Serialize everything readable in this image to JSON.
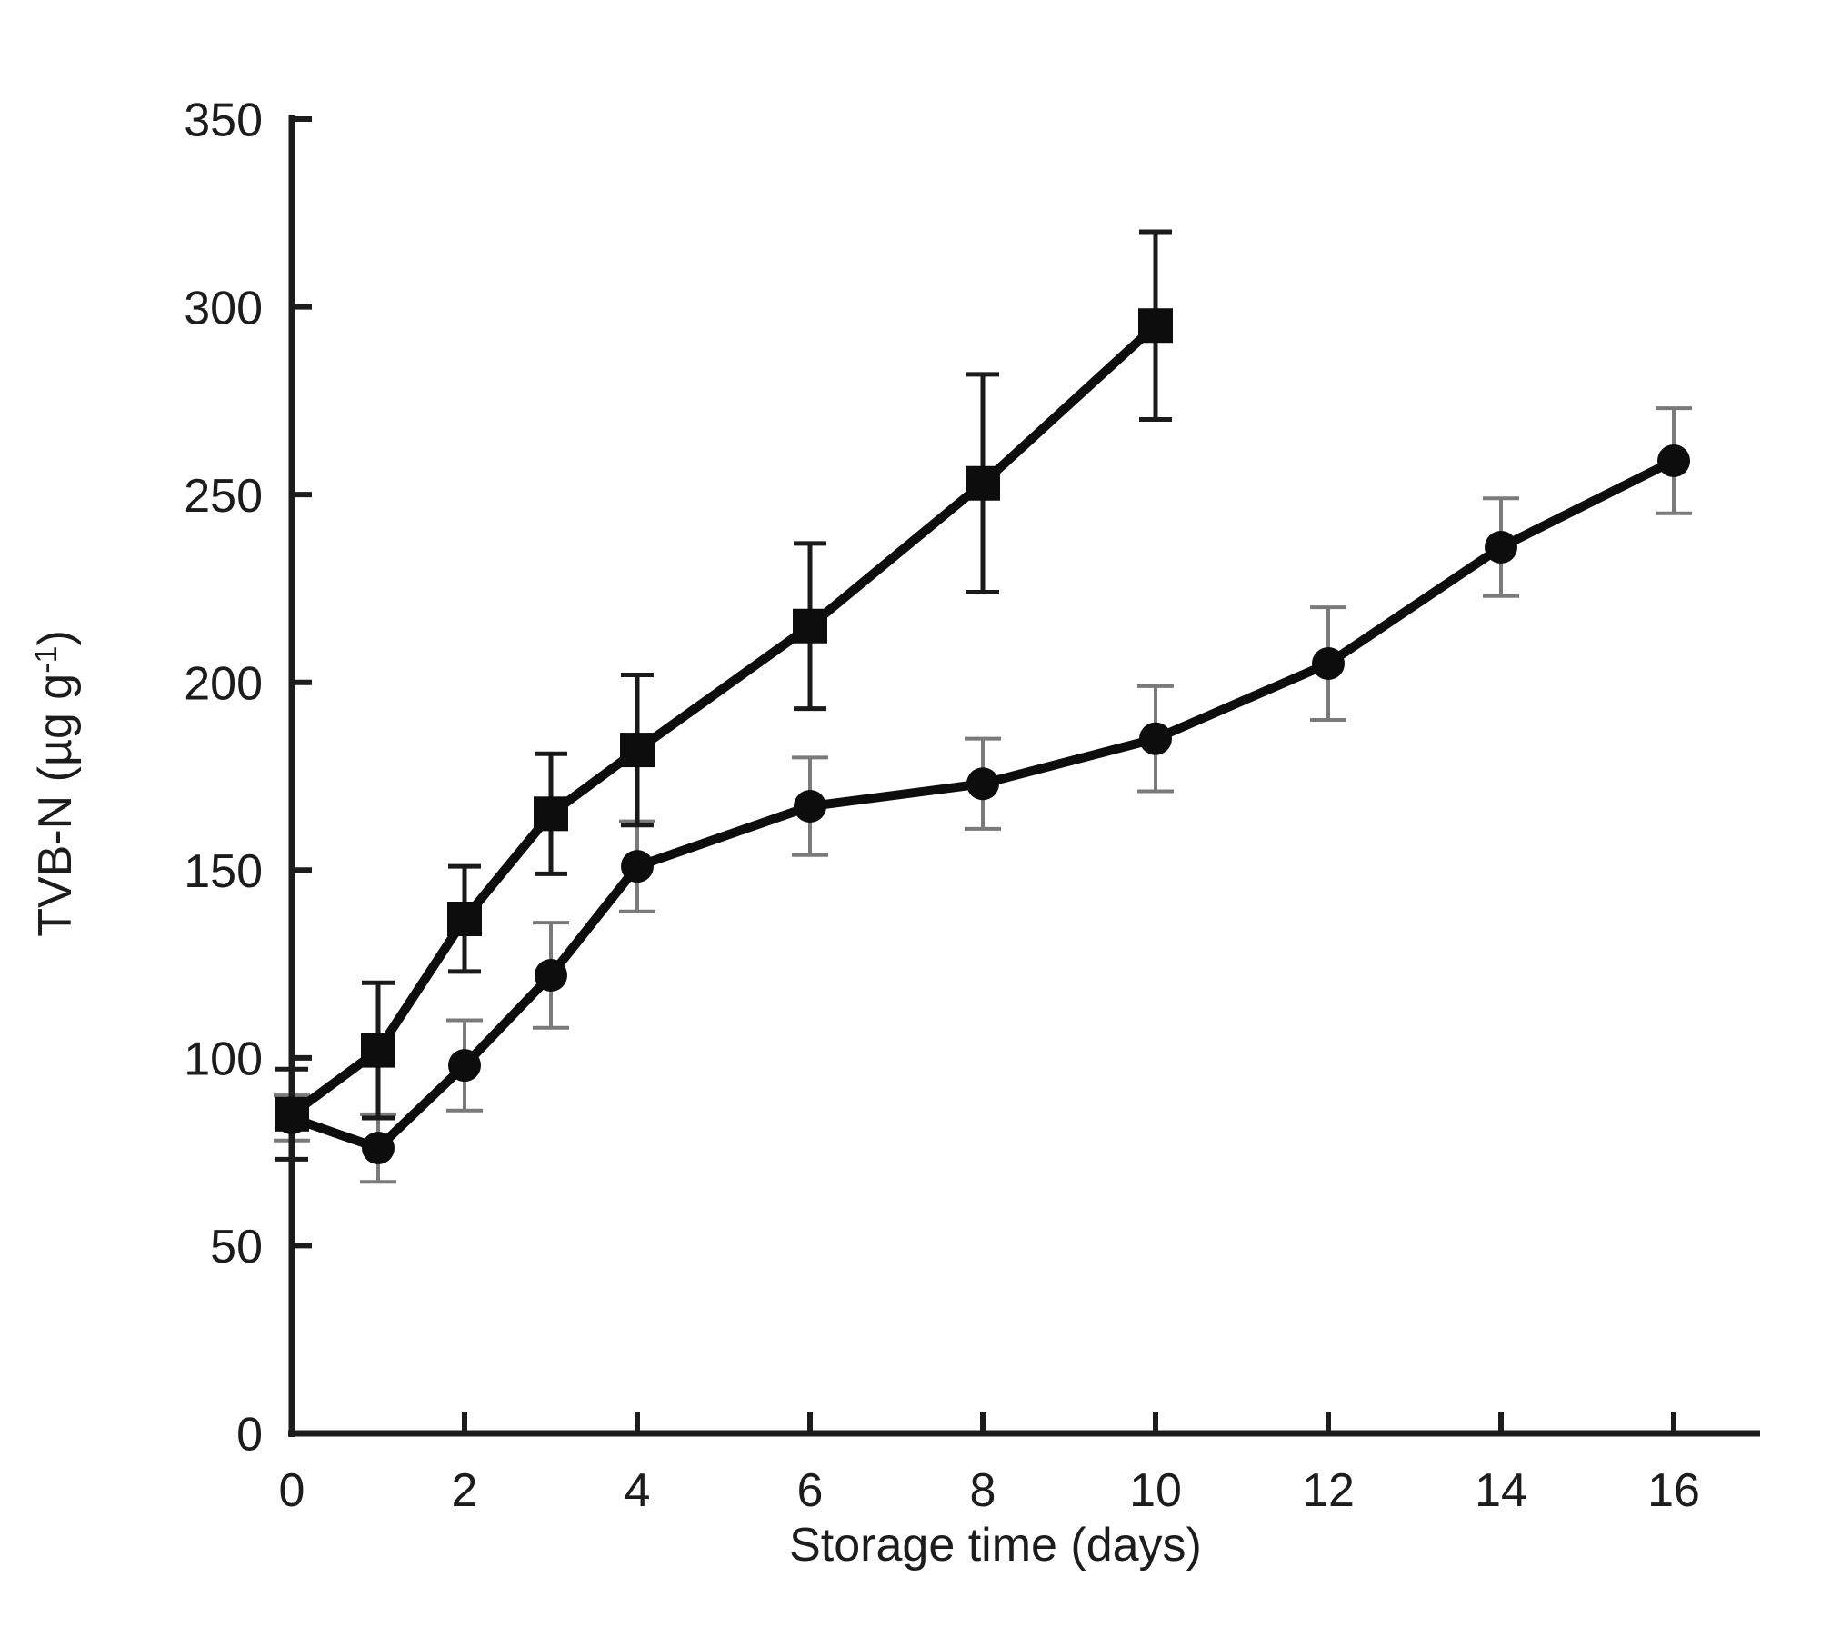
{
  "chart_data": {
    "type": "line",
    "title": "",
    "xlabel": "Storage time (days)",
    "ylabel_main": "TVB-N (µg g",
    "ylabel_sup": "-1",
    "ylabel_end": ")",
    "xlim": [
      0,
      17.0
    ],
    "ylim": [
      0,
      350
    ],
    "x_ticks": [
      0,
      2,
      4,
      6,
      8,
      10,
      12,
      14,
      16
    ],
    "y_ticks": [
      0,
      50,
      100,
      150,
      200,
      250,
      300,
      350
    ],
    "grid": false,
    "legend": "none",
    "background": "#ffffff",
    "axis_color": "#1c1c1c",
    "text_color": "#1c1c1c",
    "series": [
      {
        "name": "squares",
        "marker": "square",
        "color": "#0d0d0d",
        "error_color": "#1a1a1a",
        "x": [
          0,
          1,
          2,
          3,
          4,
          6,
          8,
          10
        ],
        "y": [
          85,
          102,
          137,
          165,
          182,
          215,
          253,
          295
        ],
        "yerr": [
          12,
          18,
          14,
          16,
          20,
          22,
          29,
          25
        ]
      },
      {
        "name": "circles",
        "marker": "circle",
        "color": "#0d0d0d",
        "error_color": "#7a7a7a",
        "x": [
          0,
          1,
          2,
          3,
          4,
          6,
          8,
          10,
          12,
          14,
          16
        ],
        "y": [
          84,
          76,
          98,
          122,
          151,
          167,
          173,
          185,
          205,
          236,
          259
        ],
        "yerr": [
          6,
          9,
          12,
          14,
          12,
          13,
          12,
          14,
          15,
          13,
          14
        ]
      }
    ]
  }
}
